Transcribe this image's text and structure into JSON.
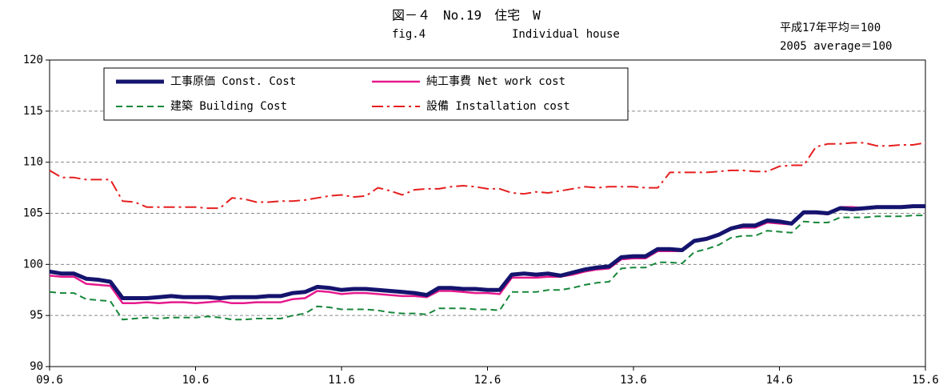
{
  "chart_data": {
    "type": "line",
    "title": "図－４　No.19　住宅　W",
    "subtitle_left": "fig.4",
    "subtitle_right": "Individual house",
    "base_note_ja": "平成17年平均＝100",
    "base_note_en": "2005 average＝100",
    "categories": [
      "09.6",
      null,
      null,
      null,
      null,
      null,
      null,
      null,
      null,
      null,
      null,
      null,
      "10.6",
      null,
      null,
      null,
      null,
      null,
      null,
      null,
      null,
      null,
      null,
      null,
      "11.6",
      null,
      null,
      null,
      null,
      null,
      null,
      null,
      null,
      null,
      null,
      null,
      "12.6",
      null,
      null,
      null,
      null,
      null,
      null,
      null,
      null,
      null,
      null,
      null,
      "13.6",
      null,
      null,
      null,
      null,
      null,
      null,
      null,
      null,
      null,
      null,
      null,
      "14.6",
      null,
      null,
      null,
      null,
      null,
      null,
      null,
      null,
      null,
      null,
      null,
      "15.6"
    ],
    "ylim": [
      90,
      120
    ],
    "yticks": [
      90,
      95,
      100,
      105,
      110,
      115,
      120
    ],
    "grid": true,
    "series": [
      {
        "name": "工事原価 Const. Cost",
        "color": "#14146e",
        "width": 5,
        "dash": "solid",
        "values": [
          99.3,
          99.1,
          99.1,
          98.6,
          98.5,
          98.3,
          96.7,
          96.7,
          96.7,
          96.8,
          96.9,
          96.8,
          96.8,
          96.8,
          96.7,
          96.8,
          96.8,
          96.8,
          96.9,
          96.9,
          97.2,
          97.3,
          97.8,
          97.7,
          97.5,
          97.6,
          97.6,
          97.5,
          97.4,
          97.3,
          97.2,
          97.0,
          97.7,
          97.7,
          97.6,
          97.6,
          97.5,
          97.5,
          99.0,
          99.1,
          99.0,
          99.1,
          98.9,
          99.2,
          99.5,
          99.7,
          99.8,
          100.7,
          100.8,
          100.8,
          101.5,
          101.5,
          101.4,
          102.3,
          102.5,
          102.9,
          103.5,
          103.8,
          103.8,
          104.3,
          104.2,
          104.0,
          105.1,
          105.1,
          105.0,
          105.5,
          105.4,
          105.5,
          105.6,
          105.6,
          105.6,
          105.7,
          105.7
        ]
      },
      {
        "name": "純工事費 Net work cost",
        "color": "#e6198c",
        "width": 2.5,
        "dash": "solid",
        "values": [
          98.9,
          98.8,
          98.8,
          98.1,
          98.0,
          97.9,
          96.2,
          96.2,
          96.3,
          96.2,
          96.3,
          96.3,
          96.2,
          96.3,
          96.4,
          96.2,
          96.2,
          96.3,
          96.3,
          96.3,
          96.6,
          96.7,
          97.4,
          97.3,
          97.1,
          97.2,
          97.2,
          97.1,
          97.0,
          96.9,
          96.9,
          96.8,
          97.4,
          97.4,
          97.3,
          97.2,
          97.2,
          97.1,
          98.7,
          98.7,
          98.7,
          98.8,
          98.8,
          99.0,
          99.3,
          99.5,
          99.6,
          100.5,
          100.6,
          100.6,
          101.3,
          101.3,
          101.3,
          102.2,
          102.4,
          102.9,
          103.5,
          103.6,
          103.6,
          104.1,
          104.0,
          103.9,
          105.0,
          105.0,
          104.9,
          105.6,
          105.6,
          105.5,
          105.6,
          105.6,
          105.6,
          105.7,
          105.7
        ]
      },
      {
        "name": "建築 Building Cost",
        "color": "#16873a",
        "width": 2,
        "dash": "dashed",
        "values": [
          97.3,
          97.2,
          97.2,
          96.6,
          96.5,
          96.4,
          94.6,
          94.7,
          94.8,
          94.7,
          94.8,
          94.8,
          94.8,
          94.9,
          94.8,
          94.6,
          94.6,
          94.7,
          94.7,
          94.7,
          95.0,
          95.2,
          95.9,
          95.8,
          95.6,
          95.6,
          95.6,
          95.5,
          95.3,
          95.2,
          95.2,
          95.1,
          95.7,
          95.7,
          95.7,
          95.6,
          95.6,
          95.5,
          97.3,
          97.3,
          97.3,
          97.5,
          97.5,
          97.7,
          98.0,
          98.2,
          98.3,
          99.6,
          99.7,
          99.7,
          100.2,
          100.2,
          100.1,
          101.2,
          101.5,
          101.9,
          102.6,
          102.8,
          102.8,
          103.3,
          103.2,
          103.1,
          104.2,
          104.1,
          104.1,
          104.6,
          104.6,
          104.6,
          104.7,
          104.7,
          104.7,
          104.8,
          104.8
        ]
      },
      {
        "name": "設備 Installation cost",
        "color": "#e61e1e",
        "width": 2,
        "dash": "dashdot",
        "values": [
          109.2,
          108.5,
          108.5,
          108.3,
          108.3,
          108.3,
          106.2,
          106.1,
          105.6,
          105.6,
          105.6,
          105.6,
          105.6,
          105.5,
          105.5,
          106.5,
          106.4,
          106.1,
          106.1,
          106.2,
          106.2,
          106.3,
          106.5,
          106.7,
          106.8,
          106.6,
          106.7,
          107.5,
          107.2,
          106.8,
          107.3,
          107.4,
          107.4,
          107.6,
          107.7,
          107.6,
          107.4,
          107.4,
          107.0,
          106.9,
          107.1,
          107.0,
          107.2,
          107.4,
          107.6,
          107.5,
          107.6,
          107.6,
          107.6,
          107.5,
          107.5,
          109.0,
          109.0,
          109.0,
          109.0,
          109.1,
          109.2,
          109.2,
          109.1,
          109.1,
          109.6,
          109.7,
          109.7,
          111.5,
          111.8,
          111.8,
          111.9,
          111.9,
          111.6,
          111.6,
          111.7,
          111.7,
          111.9
        ]
      }
    ]
  }
}
